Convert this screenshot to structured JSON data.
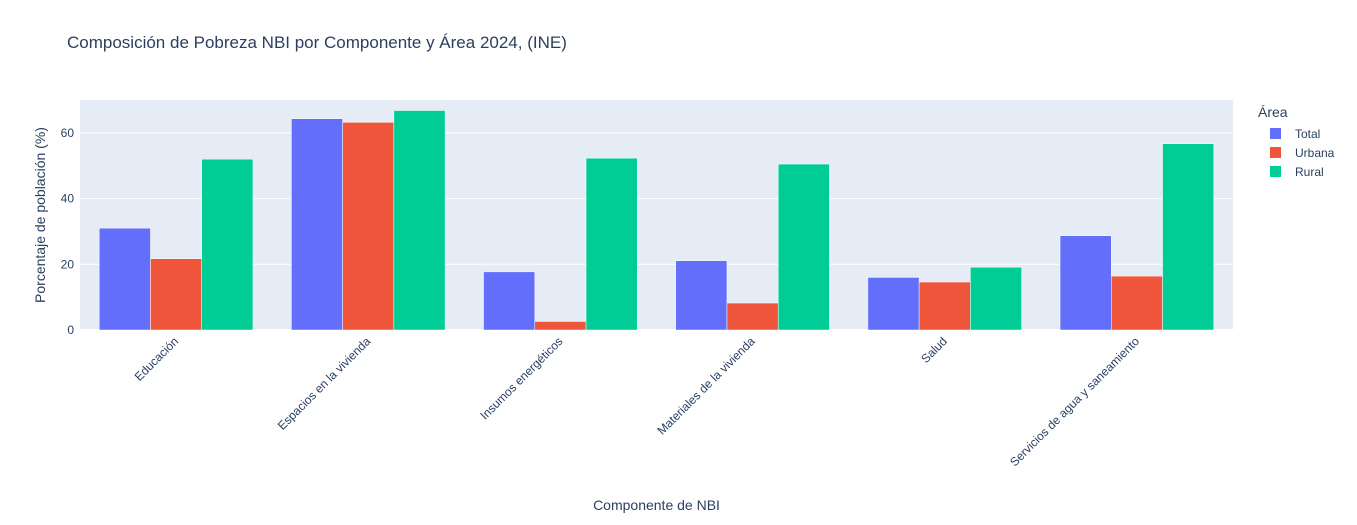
{
  "chart_data": {
    "type": "bar",
    "title": "Composición de Pobreza NBI por Componente y Área 2024, (INE)",
    "xlabel": "Componente de NBI",
    "ylabel": "Porcentaje de población (%)",
    "ylim": [
      0,
      70
    ],
    "yticks": [
      0,
      20,
      40,
      60
    ],
    "categories": [
      "Educación",
      "Espacios en la vivienda",
      "Insumos energéticos",
      "Materiales de la vivienda",
      "Salud",
      "Servicios de agua y saneamiento"
    ],
    "legend_title": "Área",
    "legend_position": "right",
    "grid": true,
    "series": [
      {
        "name": "Total",
        "color": "#636efa",
        "values": [
          31.0,
          64.3,
          17.7,
          21.1,
          16.0,
          28.7
        ]
      },
      {
        "name": "Urbana",
        "color": "#ef553b",
        "values": [
          21.7,
          63.2,
          2.6,
          8.2,
          14.6,
          16.4
        ]
      },
      {
        "name": "Rural",
        "color": "#00cc96",
        "values": [
          52.0,
          66.8,
          52.3,
          50.5,
          19.1,
          56.7
        ]
      }
    ]
  }
}
